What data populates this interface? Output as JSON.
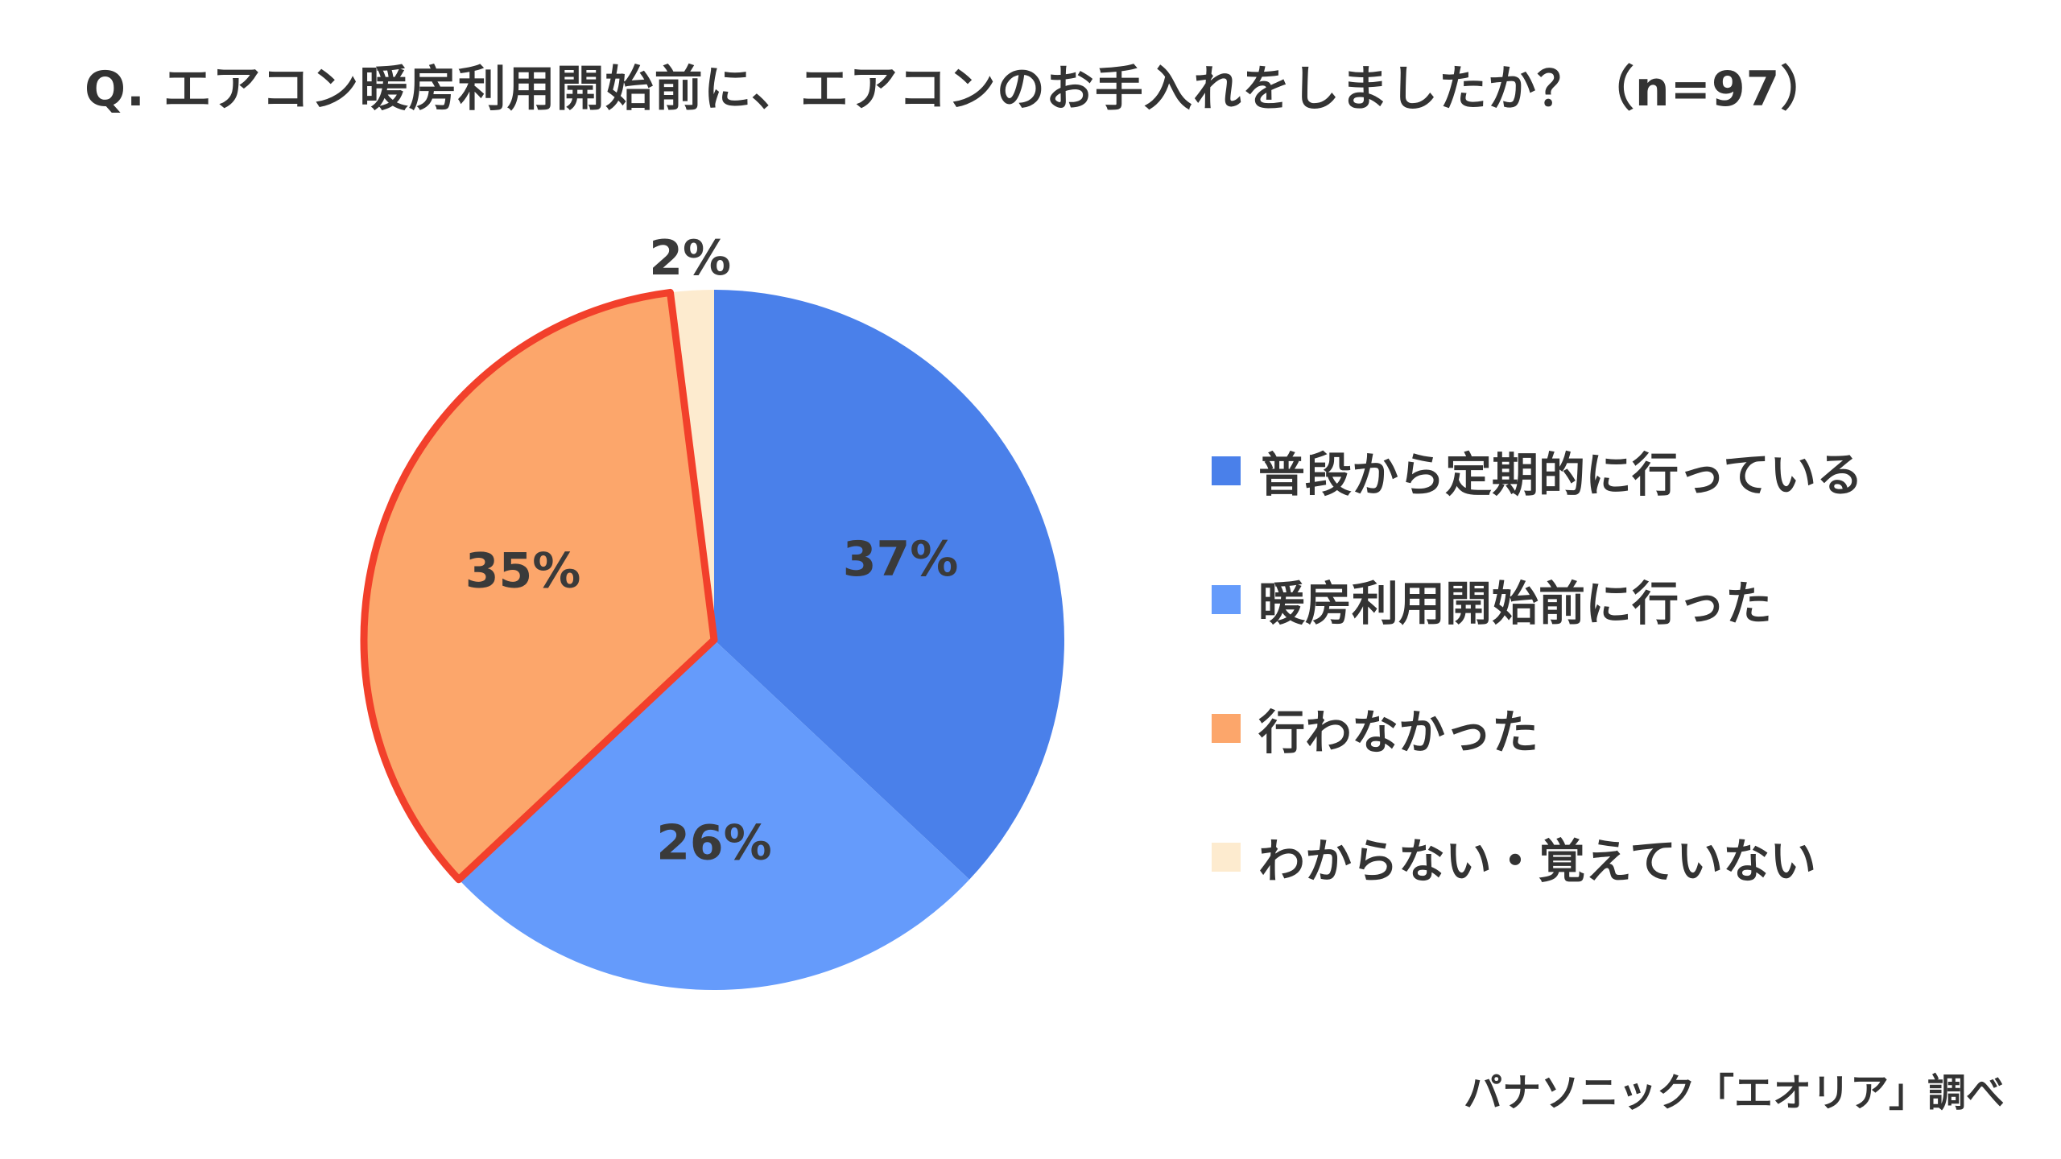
{
  "chart_data": {
    "type": "pie",
    "title": "Q. エアコン暖房利用開始前に、エアコンのお手入れをしましたか？（n=97）",
    "categories": [
      "普段から定期的に行っている",
      "暖房利用開始前に行った",
      "行わなかった",
      "わからない・覚えていない"
    ],
    "values": [
      37,
      26,
      35,
      2
    ],
    "labels": [
      "37%",
      "26%",
      "35%",
      "2%"
    ],
    "colors": [
      "#4a80ea",
      "#659bfb",
      "#fca66b",
      "#fdebcf"
    ],
    "highlight": {
      "category": "行わなかった",
      "stroke_color": "#f2402b"
    },
    "legend_position": "right"
  },
  "source": "パナソニック「エオリア」調べ"
}
